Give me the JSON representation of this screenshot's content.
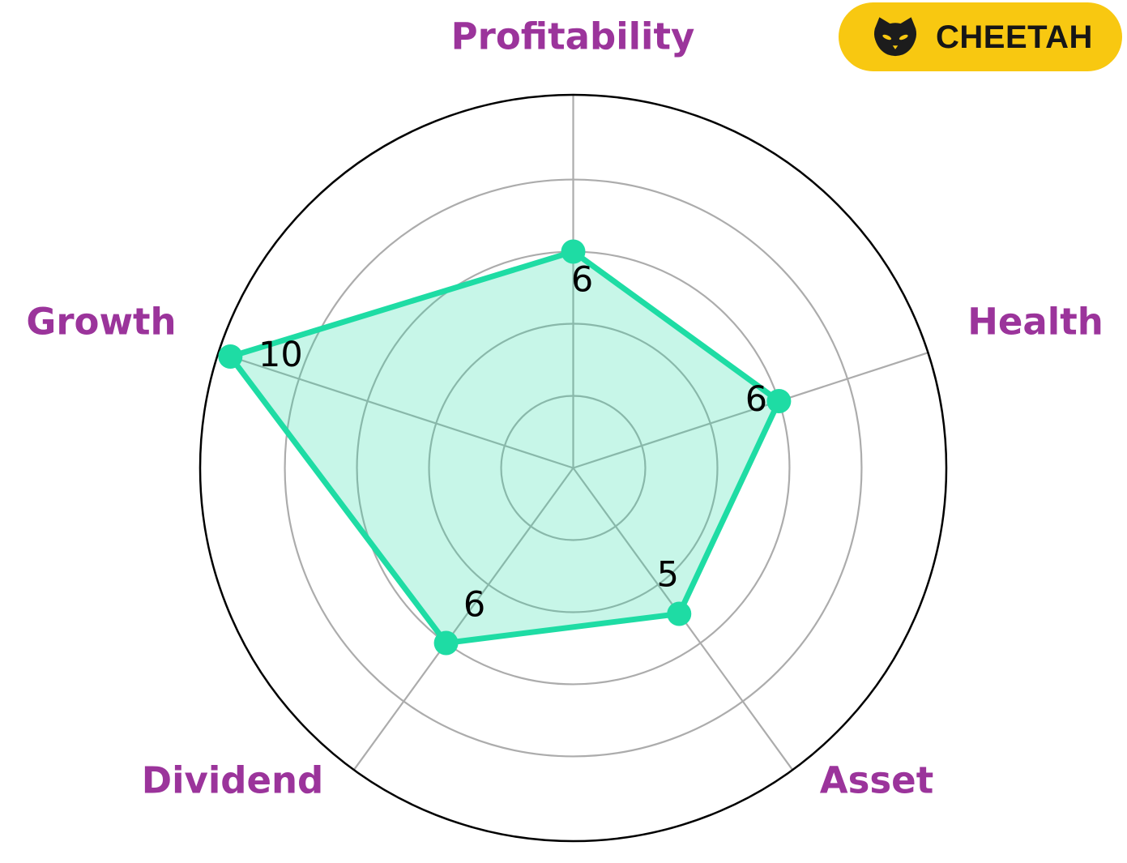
{
  "badge": {
    "label": "CHEETAH",
    "bg_color": "#F8C811",
    "text_color": "#161616",
    "icon": "cat-face-icon",
    "icon_color": "#1C1C1C"
  },
  "chart_data": {
    "type": "radar",
    "categories": [
      "Profitability",
      "Health",
      "Asset",
      "Dividend",
      "Growth"
    ],
    "series": [
      {
        "name": "CHEETAH",
        "values": [
          6,
          6,
          5,
          6,
          10
        ]
      }
    ],
    "value_labels": [
      "6",
      "6",
      "5",
      "6",
      "10"
    ],
    "r_min": 0,
    "r_max": 10.35,
    "r_gridlines": [
      2,
      4,
      6,
      8
    ],
    "grid_on": true,
    "legend_position": "none",
    "title": "",
    "colors": {
      "line": "#1EDCA4",
      "fill": "rgba(30, 220, 164, 0.25)",
      "marker": "#1EDCA4",
      "grid": "#ACACAC",
      "outer_ring": "#000000",
      "axis_label": "#9B349B",
      "value_label": "#000000"
    }
  }
}
